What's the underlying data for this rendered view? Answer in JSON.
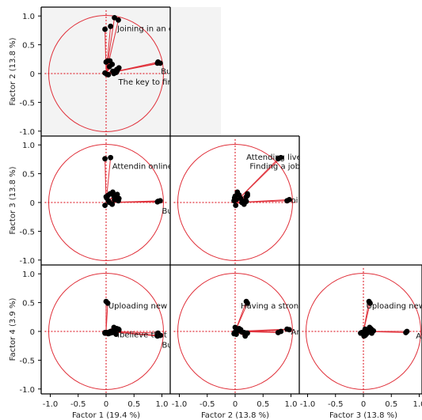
{
  "chart_data": {
    "type": "scatter",
    "title": "",
    "subtype": "factor loading plot matrix",
    "circle_color": "#e0303a",
    "ray_color": "#e0303a",
    "point_color": "#000000",
    "gray_panel_color": "#f3f3f3",
    "grid": false,
    "axis_range": [
      -1.1,
      1.1
    ],
    "ticks": [
      -1.0,
      -0.5,
      0.0,
      0.5,
      1.0
    ],
    "tick_labels": [
      "-1.0",
      "-0.5",
      "0",
      "0.5",
      "1.0"
    ],
    "factors": [
      {
        "name": "Factor 1",
        "label": "Factor 1  (19.4 %)"
      },
      {
        "name": "Factor 2",
        "label": "Factor 2  (13.8 %)"
      },
      {
        "name": "Factor 3",
        "label": "Factor 3  (13.8 %)"
      },
      {
        "name": "Factor 4",
        "label": "Factor 4  (3.9 %)"
      }
    ],
    "variables": [
      {
        "f1": 0.15,
        "f2": 0.97,
        "f3": 0.05,
        "f4": 0.03
      },
      {
        "f1": 0.22,
        "f2": 0.93,
        "f3": 0.03,
        "f4": 0.04
      },
      {
        "f1": 0.93,
        "f2": 0.2,
        "f3": 0.02,
        "f4": -0.03
      },
      {
        "f1": 0.97,
        "f2": 0.18,
        "f3": 0.03,
        "f4": -0.07
      },
      {
        "f1": 0.92,
        "f2": 0.18,
        "f3": 0.01,
        "f4": -0.08
      },
      {
        "f1": 0.08,
        "f2": 0.82,
        "f3": 0.78,
        "f4": 0.0
      },
      {
        "f1": -0.02,
        "f2": 0.77,
        "f3": 0.76,
        "f4": -0.02
      },
      {
        "f1": 0.03,
        "f2": 0.22,
        "f3": 0.12,
        "f4": 0.49
      },
      {
        "f1": 0.0,
        "f2": 0.2,
        "f3": 0.1,
        "f4": 0.52
      },
      {
        "f1": 0.07,
        "f2": 0.22,
        "f3": 0.15,
        "f4": -0.03
      },
      {
        "f1": 0.2,
        "f2": 0.05,
        "f3": 0.14,
        "f4": 0.04
      },
      {
        "f1": 0.14,
        "f2": 0.0,
        "f3": 0.11,
        "f4": 0.07
      },
      {
        "f1": 0.18,
        "f2": 0.02,
        "f3": 0.05,
        "f4": -0.05
      },
      {
        "f1": 0.23,
        "f2": 0.1,
        "f3": 0.07,
        "f4": 0.03
      },
      {
        "f1": 0.11,
        "f2": 0.16,
        "f3": -0.03,
        "f4": -0.02
      },
      {
        "f1": -0.02,
        "f2": 0.01,
        "f3": -0.05,
        "f4": -0.03
      },
      {
        "f1": 0.04,
        "f2": -0.02,
        "f3": 0.03,
        "f4": -0.04
      },
      {
        "f1": 0.06,
        "f2": 0.12,
        "f3": 0.0,
        "f4": -0.01
      },
      {
        "f1": 0.12,
        "f2": 0.04,
        "f3": 0.18,
        "f4": 0.01
      },
      {
        "f1": 0.01,
        "f2": -0.01,
        "f3": 0.08,
        "f4": -0.02
      },
      {
        "f1": 0.19,
        "f2": 0.07,
        "f3": 0.13,
        "f4": 0.05
      }
    ],
    "panels": [
      {
        "row": 0,
        "col": 0,
        "x": "f1",
        "y": "f2",
        "background": "gray",
        "annotations": [
          {
            "text": "Joining in an er",
            "at": [
              0.2,
              0.79
            ]
          },
          {
            "text": "Bu",
            "at": [
              0.98,
              0.05
            ]
          },
          {
            "text": "The key to findi",
            "at": [
              0.22,
              -0.14
            ]
          }
        ]
      },
      {
        "row": 1,
        "col": 0,
        "x": "f1",
        "y": "f3",
        "annotations": [
          {
            "text": "Attendin online w",
            "at": [
              0.11,
              0.64
            ]
          },
          {
            "text": "Bu",
            "at": [
              1.0,
              -0.14
            ]
          }
        ]
      },
      {
        "row": 1,
        "col": 1,
        "x": "f2",
        "y": "f3",
        "annotations": [
          {
            "text": "Attending live w",
            "at": [
              0.2,
              0.8
            ]
          },
          {
            "text": "Finding a job e",
            "at": [
              0.26,
              0.64
            ]
          },
          {
            "text": "oi",
            "at": [
              1.0,
              0.05
            ]
          }
        ]
      },
      {
        "row": 2,
        "col": 0,
        "x": "f1",
        "y": "f4",
        "annotations": [
          {
            "text": "Uploading new co",
            "at": [
              0.04,
              0.45
            ]
          },
          {
            "text": "Ibelieve that a",
            "at": [
              0.2,
              -0.05
            ]
          },
          {
            "text": "Bu",
            "at": [
              1.0,
              -0.23
            ]
          }
        ]
      },
      {
        "row": 2,
        "col": 1,
        "x": "f2",
        "y": "f4",
        "annotations": [
          {
            "text": "Having a strong o",
            "at": [
              0.1,
              0.45
            ]
          },
          {
            "text": "Ar",
            "at": [
              1.0,
              0.0
            ]
          }
        ]
      },
      {
        "row": 2,
        "col": 2,
        "x": "f3",
        "y": "f4",
        "annotations": [
          {
            "text": "Uploading new c",
            "at": [
              0.05,
              0.45
            ]
          },
          {
            "text": "Att",
            "at": [
              0.94,
              -0.07
            ]
          }
        ]
      }
    ]
  }
}
